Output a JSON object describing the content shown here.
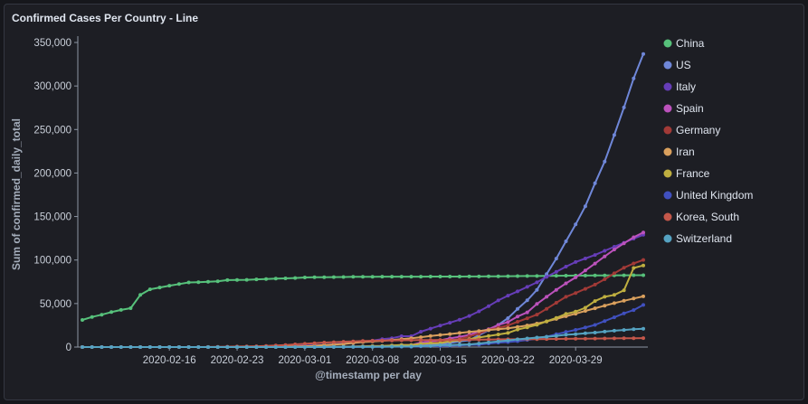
{
  "chart_data": {
    "type": "line",
    "title": "Confirmed Cases Per Country - Line",
    "xlabel": "@timestamp per day",
    "ylabel": "Sum of confirmed_daily_total",
    "ylim": [
      0,
      350000
    ],
    "grid": false,
    "legend_position": "right",
    "x_ticks": [
      "2020-02-16",
      "2020-02-23",
      "2020-03-01",
      "2020-03-08",
      "2020-03-15",
      "2020-03-22",
      "2020-03-29"
    ],
    "y_ticks": [
      0,
      50000,
      100000,
      150000,
      200000,
      250000,
      300000,
      350000
    ],
    "y_tick_labels": [
      "0",
      "50,000",
      "100,000",
      "150,000",
      "200,000",
      "250,000",
      "300,000",
      "350,000"
    ],
    "x": [
      "2020-02-07",
      "2020-02-08",
      "2020-02-09",
      "2020-02-10",
      "2020-02-11",
      "2020-02-12",
      "2020-02-13",
      "2020-02-14",
      "2020-02-15",
      "2020-02-16",
      "2020-02-17",
      "2020-02-18",
      "2020-02-19",
      "2020-02-20",
      "2020-02-21",
      "2020-02-22",
      "2020-02-23",
      "2020-02-24",
      "2020-02-25",
      "2020-02-26",
      "2020-02-27",
      "2020-02-28",
      "2020-02-29",
      "2020-03-01",
      "2020-03-02",
      "2020-03-03",
      "2020-03-04",
      "2020-03-05",
      "2020-03-06",
      "2020-03-07",
      "2020-03-08",
      "2020-03-09",
      "2020-03-10",
      "2020-03-11",
      "2020-03-12",
      "2020-03-13",
      "2020-03-14",
      "2020-03-15",
      "2020-03-16",
      "2020-03-17",
      "2020-03-18",
      "2020-03-19",
      "2020-03-20",
      "2020-03-21",
      "2020-03-22",
      "2020-03-23",
      "2020-03-24",
      "2020-03-25",
      "2020-03-26",
      "2020-03-27",
      "2020-03-28",
      "2020-03-29",
      "2020-03-30",
      "2020-03-31",
      "2020-04-01",
      "2020-04-02",
      "2020-04-03",
      "2020-04-04",
      "2020-04-05"
    ],
    "series": [
      {
        "name": "China",
        "color": "#57c17b",
        "values": [
          31161,
          34546,
          37198,
          40171,
          42638,
          44653,
          59895,
          66358,
          68413,
          70513,
          72434,
          74211,
          74619,
          75077,
          75550,
          77001,
          77022,
          77241,
          77754,
          78166,
          78600,
          78928,
          79356,
          79932,
          80136,
          80261,
          80386,
          80537,
          80690,
          80770,
          80823,
          80860,
          80887,
          80921,
          80932,
          80945,
          80977,
          81003,
          81033,
          81058,
          81102,
          81156,
          81250,
          81305,
          81435,
          81498,
          81591,
          81661,
          81782,
          81897,
          81999,
          82122,
          82198,
          82279,
          82361,
          82432,
          82511,
          82543,
          82602
        ]
      },
      {
        "name": "US",
        "color": "#6f87d8",
        "values": [
          11,
          11,
          11,
          11,
          12,
          12,
          13,
          13,
          13,
          13,
          13,
          13,
          13,
          13,
          15,
          15,
          15,
          51,
          51,
          57,
          58,
          60,
          68,
          74,
          98,
          118,
          149,
          217,
          262,
          402,
          518,
          583,
          959,
          1281,
          1663,
          2179,
          2727,
          3499,
          4632,
          6421,
          7783,
          13747,
          19273,
          25600,
          33276,
          43847,
          53740,
          65778,
          83836,
          101657,
          121465,
          140909,
          161831,
          188172,
          213242,
          243622,
          275367,
          308650,
          336802
        ]
      },
      {
        "name": "Italy",
        "color": "#663db8",
        "values": [
          3,
          3,
          3,
          3,
          3,
          3,
          3,
          3,
          3,
          3,
          3,
          3,
          3,
          3,
          20,
          62,
          155,
          229,
          322,
          453,
          655,
          888,
          1128,
          1694,
          2036,
          2502,
          3089,
          3858,
          4636,
          5883,
          7375,
          9172,
          10149,
          12462,
          12462,
          17660,
          21157,
          24747,
          27980,
          31506,
          35713,
          41035,
          47021,
          53578,
          59138,
          63927,
          69176,
          74386,
          80589,
          86498,
          92472,
          97689,
          101739,
          105792,
          110574,
          115242,
          119827,
          124632,
          128948
        ]
      },
      {
        "name": "Spain",
        "color": "#bc52bc",
        "values": [
          1,
          1,
          2,
          2,
          2,
          2,
          2,
          2,
          2,
          2,
          2,
          2,
          2,
          2,
          2,
          2,
          2,
          2,
          6,
          13,
          15,
          32,
          45,
          84,
          120,
          165,
          222,
          259,
          400,
          500,
          673,
          1073,
          1695,
          2277,
          2277,
          5232,
          6391,
          7798,
          9942,
          11748,
          13910,
          17963,
          20410,
          25374,
          28768,
          35136,
          39885,
          49515,
          57786,
          65719,
          73235,
          80110,
          87956,
          95923,
          104118,
          112065,
          119199,
          126168,
          131646
        ]
      },
      {
        "name": "Germany",
        "color": "#a23a37",
        "values": [
          13,
          13,
          14,
          14,
          16,
          16,
          16,
          16,
          16,
          16,
          16,
          16,
          16,
          16,
          16,
          16,
          16,
          16,
          17,
          27,
          46,
          48,
          79,
          130,
          159,
          196,
          262,
          482,
          670,
          799,
          1040,
          1176,
          1457,
          1908,
          2078,
          3675,
          4585,
          5795,
          7272,
          9257,
          12327,
          15320,
          19848,
          22213,
          24873,
          29056,
          32986,
          37323,
          43938,
          50871,
          57695,
          62095,
          66885,
          71808,
          77872,
          84794,
          91159,
          96092,
          100123
        ]
      },
      {
        "name": "Iran",
        "color": "#daa05d",
        "values": [
          0,
          0,
          0,
          0,
          0,
          0,
          0,
          0,
          0,
          0,
          0,
          0,
          2,
          5,
          18,
          28,
          43,
          61,
          95,
          139,
          245,
          388,
          593,
          978,
          1501,
          2336,
          2922,
          3513,
          4747,
          5823,
          6566,
          7161,
          8042,
          9000,
          10075,
          11364,
          12729,
          13938,
          14991,
          16169,
          17361,
          18407,
          19644,
          20610,
          21638,
          23049,
          24811,
          27017,
          29406,
          32332,
          35408,
          38309,
          41495,
          44605,
          47593,
          50468,
          53183,
          55743,
          58226
        ]
      },
      {
        "name": "France",
        "color": "#bfaf40",
        "values": [
          6,
          11,
          11,
          11,
          11,
          11,
          11,
          11,
          12,
          12,
          12,
          12,
          12,
          12,
          12,
          12,
          12,
          12,
          14,
          18,
          38,
          57,
          100,
          130,
          191,
          204,
          288,
          380,
          656,
          959,
          1136,
          1219,
          1794,
          2293,
          2293,
          3681,
          4496,
          4532,
          6683,
          7715,
          9124,
          10970,
          12758,
          14463,
          16243,
          20123,
          22622,
          25600,
          29551,
          33402,
          38105,
          40708,
          45170,
          52827,
          57749,
          59929,
          65202,
          90848,
          93773
        ]
      },
      {
        "name": "United Kingdom",
        "color": "#4050bf",
        "values": [
          3,
          3,
          3,
          8,
          8,
          9,
          9,
          9,
          9,
          9,
          9,
          9,
          9,
          9,
          9,
          9,
          9,
          9,
          9,
          13,
          13,
          20,
          23,
          36,
          40,
          51,
          86,
          116,
          164,
          207,
          274,
          322,
          384,
          459,
          459,
          802,
          1144,
          1145,
          1551,
          1960,
          2642,
          2716,
          4014,
          5067,
          5745,
          6726,
          8164,
          9640,
          11812,
          14745,
          17312,
          19780,
          22453,
          25481,
          29865,
          34173,
          38689,
          42477,
          48436
        ]
      },
      {
        "name": "Korea, South",
        "color": "#c4574a",
        "values": [
          24,
          24,
          25,
          27,
          28,
          28,
          28,
          28,
          28,
          29,
          30,
          31,
          31,
          104,
          204,
          433,
          602,
          833,
          977,
          1261,
          1766,
          2337,
          3150,
          3736,
          4335,
          5186,
          5621,
          6088,
          6593,
          7041,
          7314,
          7478,
          7513,
          7755,
          7869,
          7979,
          8086,
          8162,
          8236,
          8320,
          8413,
          8565,
          8652,
          8799,
          8897,
          8961,
          9037,
          9137,
          9241,
          9332,
          9478,
          9583,
          9661,
          9786,
          9887,
          9976,
          10062,
          10156,
          10237
        ]
      },
      {
        "name": "Switzerland",
        "color": "#55a3c2",
        "values": [
          0,
          0,
          0,
          0,
          0,
          0,
          0,
          0,
          0,
          0,
          0,
          0,
          0,
          0,
          0,
          0,
          0,
          0,
          1,
          1,
          8,
          8,
          18,
          27,
          42,
          56,
          90,
          114,
          214,
          268,
          337,
          374,
          491,
          652,
          652,
          1139,
          1359,
          2200,
          2200,
          2700,
          3028,
          4075,
          5294,
          6575,
          7474,
          8795,
          9877,
          10897,
          11811,
          12928,
          14076,
          14829,
          15922,
          16605,
          17768,
          18827,
          19606,
          20505,
          21100
        ]
      }
    ]
  }
}
